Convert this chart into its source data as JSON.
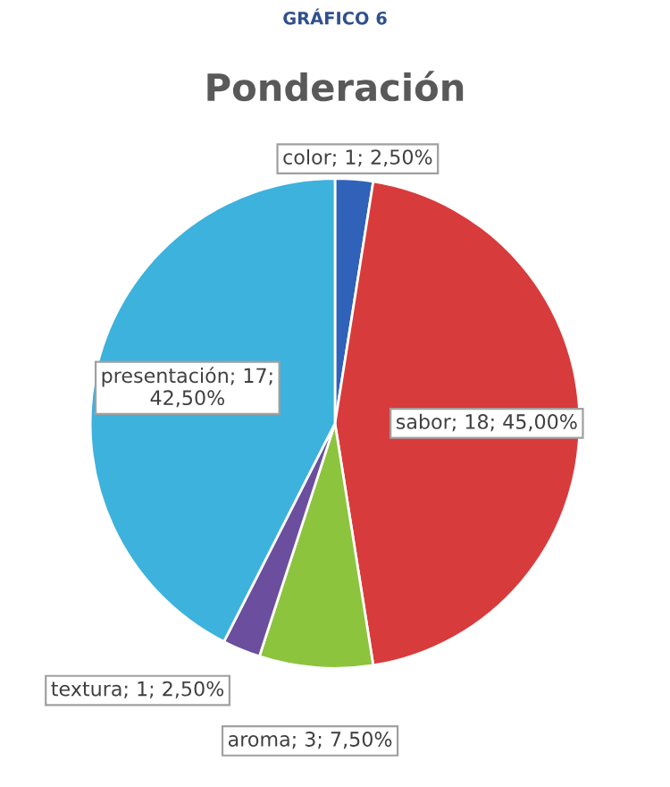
{
  "chart_data": {
    "type": "pie",
    "title": "Ponderación",
    "annotations": [
      "GRÁFICO 6"
    ],
    "categories": [
      "color",
      "sabor",
      "aroma",
      "textura",
      "presentación"
    ],
    "values": [
      2.5,
      45,
      7.5,
      2.5,
      42.5
    ],
    "value_labels": [
      "1; 2,50%",
      "18; 45,00%",
      "3; 7,50%",
      "1; 2,50%",
      "17;\n42,50%"
    ],
    "colors": [
      "#2f62b8",
      "#d83b3b",
      "#8cc43e",
      "#6b4f9e",
      "#3cb2dc"
    ]
  }
}
